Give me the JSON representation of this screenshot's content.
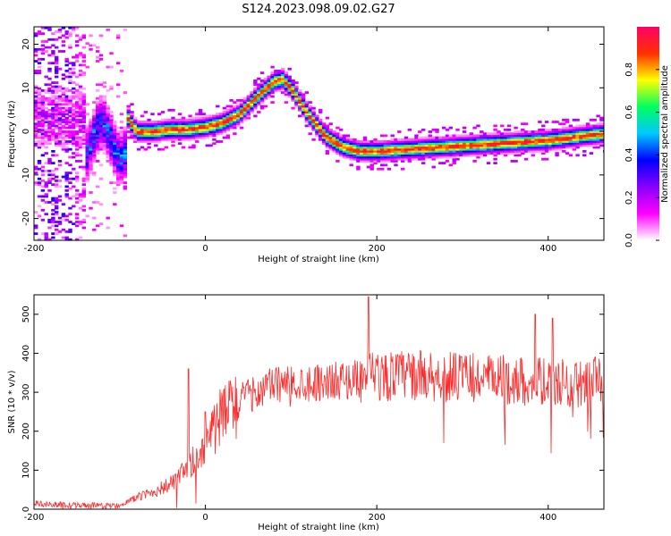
{
  "title": "S124.2023.098.09.02.G27",
  "chart_data": [
    {
      "type": "heatmap",
      "xlabel": "Height of straight line (km)",
      "ylabel": "Frequency (Hz)",
      "xlim": [
        -200,
        465
      ],
      "ylim": [
        -25,
        24
      ],
      "x_ticks": [
        -200,
        0,
        200,
        400
      ],
      "y_ticks": [
        20,
        10,
        0,
        -10,
        -20
      ],
      "colorbar": {
        "label": "Normalized spectral amplitude",
        "range": [
          0.0,
          1.0
        ],
        "ticks": [
          0.0,
          0.2,
          0.4,
          0.6,
          0.8
        ],
        "colors": [
          "#ffffff",
          "#ff00ff",
          "#8800ff",
          "#0000ff",
          "#00c8ff",
          "#00ff60",
          "#ffff00",
          "#ff3000",
          "#ff0066"
        ]
      },
      "ridge": {
        "x": [
          -90,
          -80,
          -60,
          -40,
          -20,
          0,
          20,
          40,
          60,
          80,
          90,
          100,
          120,
          140,
          160,
          180,
          200,
          240,
          280,
          320,
          360,
          400,
          440,
          465
        ],
        "y": [
          3,
          0,
          0,
          0.5,
          0.5,
          1,
          2,
          4,
          8,
          11.5,
          12,
          10,
          4,
          -1,
          -3.5,
          -4.5,
          -4.5,
          -4,
          -3.5,
          -3,
          -2.5,
          -2,
          -1,
          -0.5
        ]
      }
    },
    {
      "type": "line",
      "xlabel": "Height of straight line (km)",
      "ylabel": "SNR (10 * v/v)",
      "xlim": [
        -200,
        465
      ],
      "ylim": [
        0,
        550
      ],
      "x_ticks": [
        -200,
        0,
        200,
        400
      ],
      "y_ticks": [
        0,
        100,
        200,
        300,
        400,
        500
      ],
      "line_color": "#ff2a2a",
      "trend": {
        "x": [
          -200,
          -180,
          -150,
          -120,
          -100,
          -80,
          -60,
          -40,
          -20,
          0,
          20,
          40,
          60,
          80,
          120,
          160,
          200,
          240,
          280,
          320,
          360,
          400,
          440,
          465
        ],
        "y": [
          15,
          12,
          10,
          8,
          10,
          30,
          45,
          65,
          100,
          170,
          240,
          280,
          300,
          320,
          325,
          330,
          340,
          345,
          340,
          335,
          330,
          325,
          320,
          330
        ]
      },
      "peaks": {
        "x": [
          -20,
          0,
          190,
          385,
          405,
          455
        ],
        "y": [
          360,
          250,
          545,
          500,
          490,
          390
        ]
      }
    }
  ]
}
